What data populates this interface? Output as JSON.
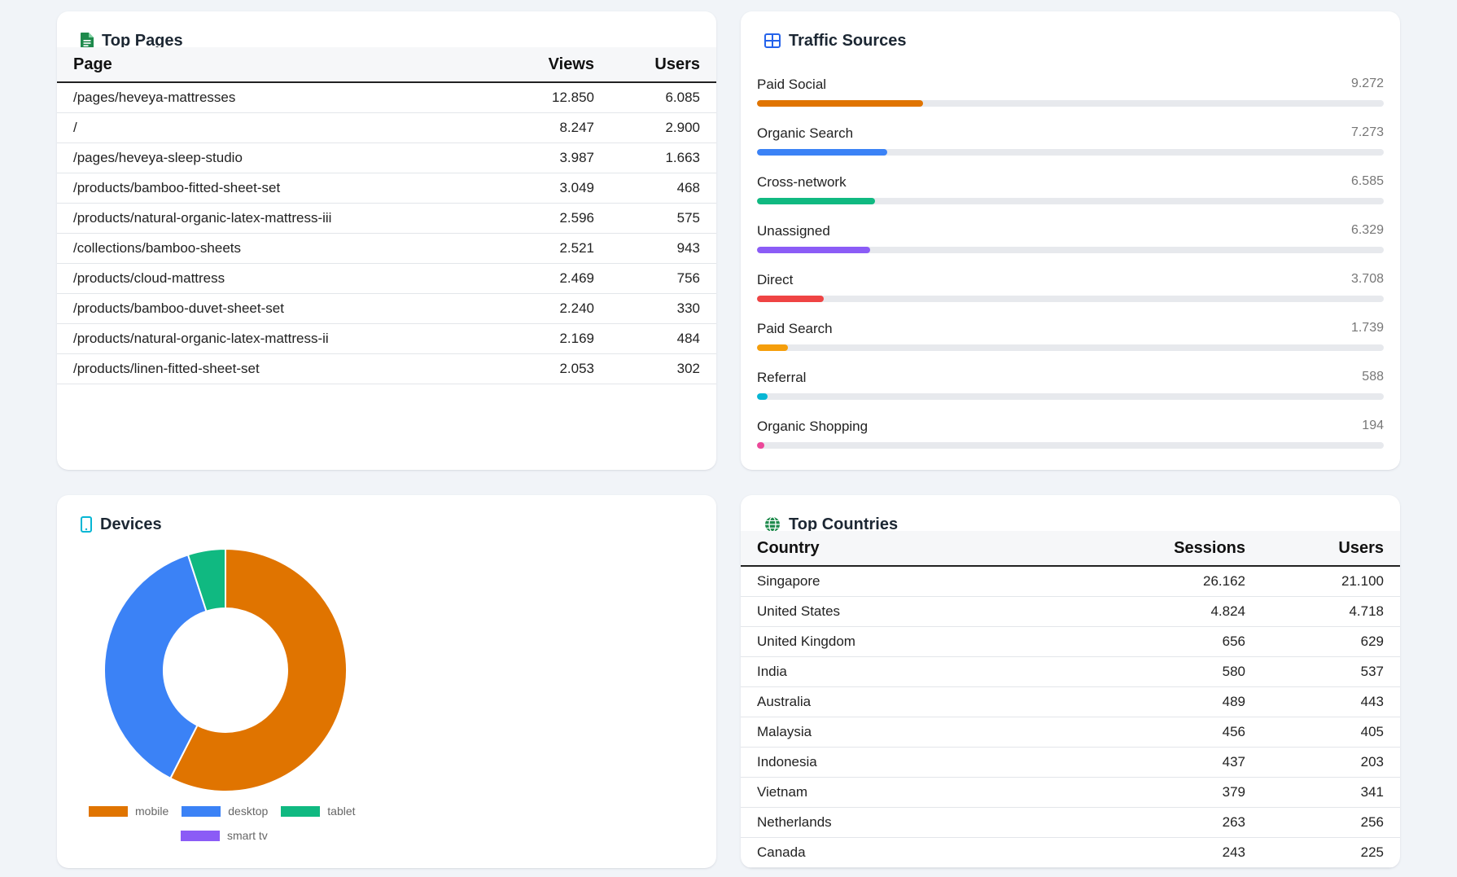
{
  "top_pages": {
    "title": "Top Pages",
    "icon": "document-icon",
    "columns": [
      "Page",
      "Views",
      "Users"
    ],
    "rows": [
      {
        "page": "/pages/heveya-mattresses",
        "views": "12.850",
        "users": "6.085"
      },
      {
        "page": "/",
        "views": "8.247",
        "users": "2.900"
      },
      {
        "page": "/pages/heveya-sleep-studio",
        "views": "3.987",
        "users": "1.663"
      },
      {
        "page": "/products/bamboo-fitted-sheet-set",
        "views": "3.049",
        "users": "468"
      },
      {
        "page": "/products/natural-organic-latex-mattress-iii",
        "views": "2.596",
        "users": "575"
      },
      {
        "page": "/collections/bamboo-sheets",
        "views": "2.521",
        "users": "943"
      },
      {
        "page": "/products/cloud-mattress",
        "views": "2.469",
        "users": "756"
      },
      {
        "page": "/products/bamboo-duvet-sheet-set",
        "views": "2.240",
        "users": "330"
      },
      {
        "page": "/products/natural-organic-latex-mattress-ii",
        "views": "2.169",
        "users": "484"
      },
      {
        "page": "/products/linen-fitted-sheet-set",
        "views": "2.053",
        "users": "302"
      }
    ]
  },
  "traffic_sources": {
    "title": "Traffic Sources",
    "icon": "grid-icon",
    "max": 35000,
    "items": [
      {
        "label": "Paid Social",
        "value": "9.272",
        "amount": 9272,
        "color": "#e07400"
      },
      {
        "label": "Organic Search",
        "value": "7.273",
        "amount": 7273,
        "color": "#3b82f6"
      },
      {
        "label": "Cross-network",
        "value": "6.585",
        "amount": 6585,
        "color": "#10b981"
      },
      {
        "label": "Unassigned",
        "value": "6.329",
        "amount": 6329,
        "color": "#8b5cf6"
      },
      {
        "label": "Direct",
        "value": "3.708",
        "amount": 3708,
        "color": "#ef4444"
      },
      {
        "label": "Paid Search",
        "value": "1.739",
        "amount": 1739,
        "color": "#f59e0b"
      },
      {
        "label": "Referral",
        "value": "588",
        "amount": 588,
        "color": "#06b6d4"
      },
      {
        "label": "Organic Shopping",
        "value": "194",
        "amount": 194,
        "color": "#ec4899"
      }
    ]
  },
  "devices": {
    "title": "Devices",
    "icon": "phone-icon"
  },
  "chart_data": {
    "type": "pie",
    "categories": [
      "mobile",
      "desktop",
      "tablet",
      "smart tv"
    ],
    "values": [
      57.5,
      37.5,
      5.0,
      0.0
    ],
    "colors": [
      "#e07400",
      "#3b82f6",
      "#10b981",
      "#8b5cf6"
    ],
    "legend": "bottom"
  },
  "top_countries": {
    "title": "Top Countries",
    "icon": "globe-icon",
    "columns": [
      "Country",
      "Sessions",
      "Users"
    ],
    "rows": [
      {
        "country": "Singapore",
        "sessions": "26.162",
        "users": "21.100"
      },
      {
        "country": "United States",
        "sessions": "4.824",
        "users": "4.718"
      },
      {
        "country": "United Kingdom",
        "sessions": "656",
        "users": "629"
      },
      {
        "country": "India",
        "sessions": "580",
        "users": "537"
      },
      {
        "country": "Australia",
        "sessions": "489",
        "users": "443"
      },
      {
        "country": "Malaysia",
        "sessions": "456",
        "users": "405"
      },
      {
        "country": "Indonesia",
        "sessions": "437",
        "users": "203"
      },
      {
        "country": "Vietnam",
        "sessions": "379",
        "users": "341"
      },
      {
        "country": "Netherlands",
        "sessions": "263",
        "users": "256"
      },
      {
        "country": "Canada",
        "sessions": "243",
        "users": "225"
      }
    ]
  }
}
